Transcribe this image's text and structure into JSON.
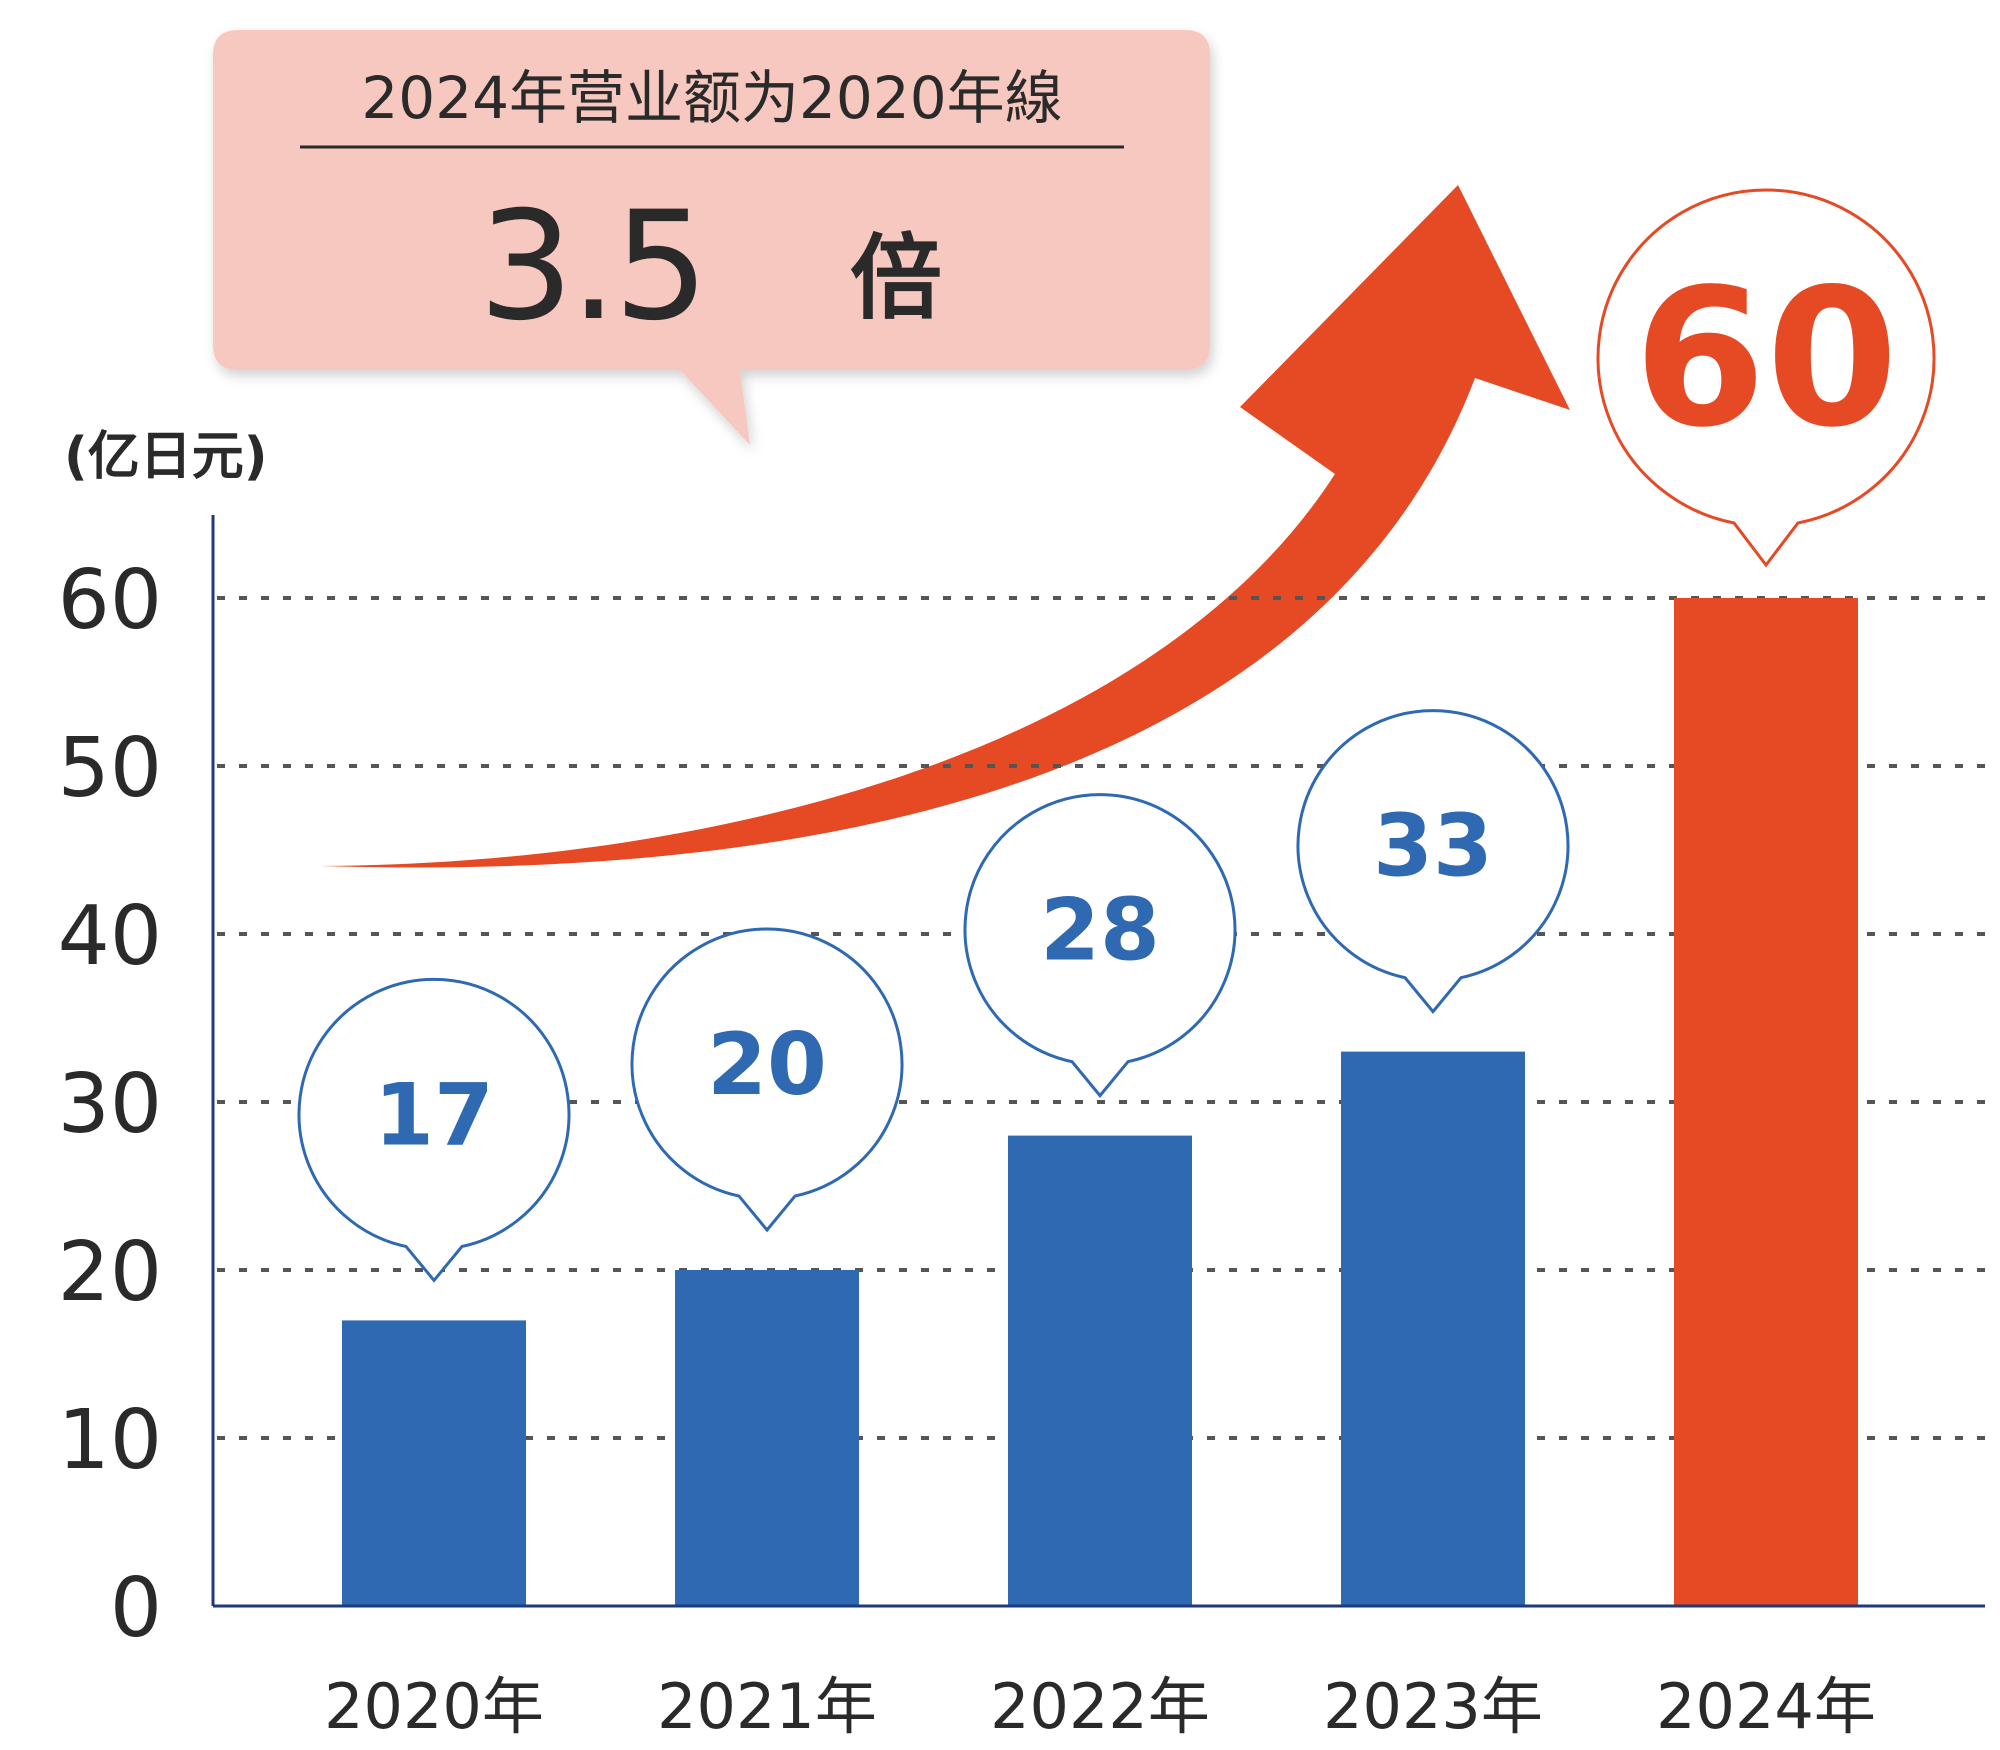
{
  "callout": {
    "title": "2024年营业额为2020年線",
    "multiplier": "3.5",
    "multiplier_unit": "倍"
  },
  "chart_data": {
    "type": "bar",
    "unit_label": "(亿日元)",
    "categories": [
      "2020年",
      "2021年",
      "2022年",
      "2023年",
      "2024年"
    ],
    "values": [
      17,
      20,
      28,
      33,
      60
    ],
    "value_labels": [
      "17",
      "20",
      "28",
      "33",
      "60"
    ],
    "ylim": [
      0,
      60
    ],
    "yticks": [
      "0",
      "10",
      "20",
      "30",
      "40",
      "50",
      "60"
    ],
    "grid": true,
    "colors": {
      "bar": "#2e69b2",
      "highlight": "#e54a25",
      "callout_bg": "#f7c8bf",
      "axis": "#1e3a7a",
      "grid": "#555555"
    }
  }
}
